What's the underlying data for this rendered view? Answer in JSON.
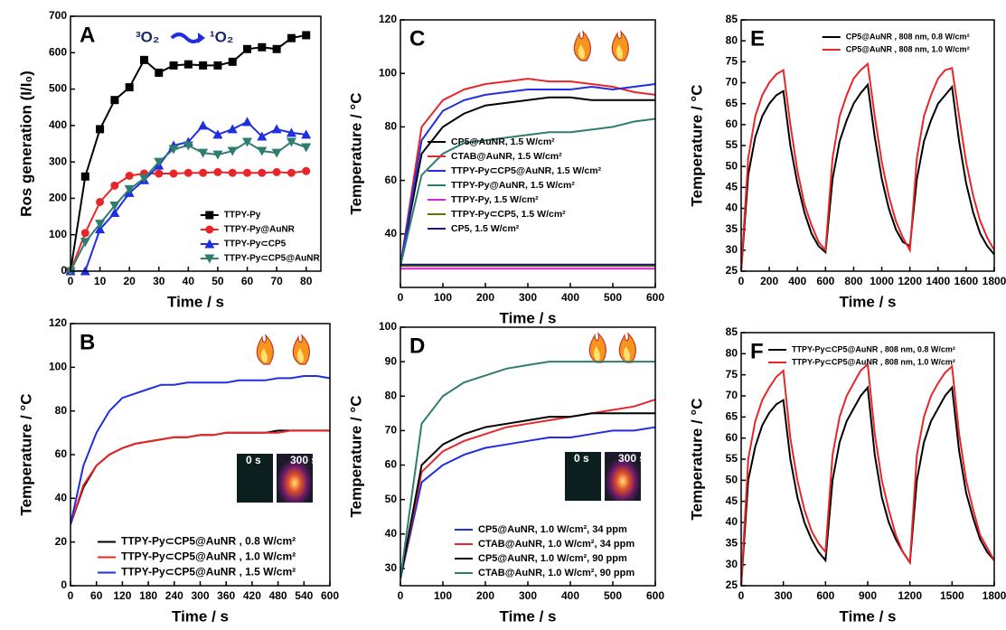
{
  "chart_data": [
    {
      "type": "line",
      "label": "A",
      "xlabel": "Time / s",
      "ylabel": "Ros generation (I/I₀)",
      "annotation": {
        "from": "³O₂",
        "to": "¹O₂"
      },
      "xlim": [
        0,
        85
      ],
      "ylim": [
        0,
        700
      ],
      "xticks": [
        0,
        10,
        20,
        30,
        40,
        50,
        60,
        70,
        80
      ],
      "yticks": [
        0,
        100,
        200,
        300,
        400,
        500,
        600,
        700
      ],
      "legend": "lower right",
      "x": [
        0,
        5,
        10,
        15,
        20,
        25,
        30,
        35,
        40,
        45,
        50,
        55,
        60,
        65,
        70,
        75,
        80
      ],
      "series": [
        {
          "name": "TTPY-Py",
          "color": "#000000",
          "marker": "square",
          "values": [
            0,
            260,
            390,
            470,
            505,
            580,
            545,
            565,
            568,
            565,
            565,
            575,
            610,
            615,
            610,
            640,
            648
          ]
        },
        {
          "name": "TTPY-Py@AuNR",
          "color": "#e8262a",
          "marker": "circle",
          "values": [
            0,
            105,
            190,
            235,
            262,
            268,
            268,
            268,
            270,
            270,
            272,
            270,
            270,
            270,
            272,
            270,
            275
          ]
        },
        {
          "name": "TTPY-Py⊂CP5",
          "color": "#1f2ee0",
          "marker": "triangle",
          "values": [
            0,
            0,
            115,
            160,
            215,
            250,
            290,
            345,
            355,
            400,
            375,
            390,
            410,
            370,
            390,
            380,
            375
          ]
        },
        {
          "name": "TTPY-Py⊂CP5@AuNR",
          "color": "#2e7d6e",
          "marker": "triangle-down",
          "values": [
            0,
            80,
            130,
            180,
            225,
            255,
            300,
            335,
            345,
            325,
            320,
            330,
            355,
            330,
            325,
            355,
            340
          ]
        }
      ]
    },
    {
      "type": "line",
      "label": "B",
      "xlabel": "Time / s",
      "ylabel": "Temperature / °C",
      "inset_labels": [
        "0 s",
        "300 s"
      ],
      "xlim": [
        0,
        600
      ],
      "ylim": [
        0,
        120
      ],
      "xticks": [
        0,
        60,
        120,
        180,
        240,
        300,
        360,
        420,
        480,
        540,
        600
      ],
      "yticks": [
        0,
        20,
        40,
        60,
        80,
        100,
        120
      ],
      "legend": "lower left",
      "x": [
        0,
        30,
        60,
        90,
        120,
        150,
        180,
        210,
        240,
        270,
        300,
        330,
        360,
        390,
        420,
        450,
        480,
        510,
        540,
        570,
        600
      ],
      "series": [
        {
          "name": "TTPY-Py⊂CP5@AuNR , 0.8 W/cm²",
          "color": "#000000",
          "values": [
            28,
            45,
            55,
            60,
            63,
            65,
            66,
            67,
            68,
            68,
            69,
            69,
            70,
            70,
            70,
            70,
            71,
            71,
            71,
            71,
            71
          ]
        },
        {
          "name": "TTPY-Py⊂CP5@AuNR , 1.0 W/cm²",
          "color": "#e8262a",
          "values": [
            28,
            46,
            55,
            60,
            63,
            65,
            66,
            67,
            68,
            68,
            69,
            69,
            70,
            70,
            70,
            70,
            70,
            71,
            71,
            71,
            71
          ]
        },
        {
          "name": "TTPY-Py⊂CP5@AuNR , 1.5 W/cm²",
          "color": "#1f2ee0",
          "values": [
            28,
            55,
            70,
            80,
            86,
            88,
            90,
            92,
            92,
            93,
            93,
            93,
            93,
            94,
            94,
            94,
            95,
            95,
            96,
            96,
            95
          ]
        }
      ]
    },
    {
      "type": "line",
      "label": "C",
      "xlabel": "Time / s",
      "ylabel": "Temperature / °C",
      "xlim": [
        0,
        600
      ],
      "ylim": [
        20,
        120
      ],
      "xticks": [
        0,
        100,
        200,
        300,
        400,
        500,
        600
      ],
      "yticks": [
        40,
        60,
        80,
        100,
        120
      ],
      "legend": "center left",
      "x": [
        0,
        50,
        100,
        150,
        200,
        250,
        300,
        350,
        400,
        450,
        500,
        550,
        600
      ],
      "series": [
        {
          "name": "CP5@AuNR, 1.5 W/cm²",
          "color": "#000000",
          "values": [
            28,
            70,
            80,
            85,
            88,
            89,
            90,
            91,
            91,
            90,
            90,
            90,
            90
          ]
        },
        {
          "name": "CTAB@AuNR,  1.5 W/cm²",
          "color": "#e8262a",
          "values": [
            28,
            80,
            90,
            94,
            96,
            97,
            98,
            97,
            97,
            96,
            95,
            93,
            92
          ]
        },
        {
          "name": "TTPY-Py⊂CP5@AuNR, 1.5 W/cm²",
          "color": "#1f2ee0",
          "values": [
            28,
            75,
            86,
            90,
            92,
            93,
            94,
            94,
            94,
            95,
            94,
            95,
            96
          ]
        },
        {
          "name": "TTPY-Py@AuNR,  1.5 W/cm²",
          "color": "#2e7d6e",
          "values": [
            28,
            62,
            70,
            74,
            75,
            76,
            77,
            78,
            78,
            79,
            80,
            82,
            83
          ]
        },
        {
          "name": "TTPY-Py, 1.5 W/cm²",
          "color": "#e020e0",
          "values": [
            27,
            27,
            27,
            27,
            27,
            27,
            27,
            27,
            27,
            27,
            27,
            27,
            27
          ]
        },
        {
          "name": "TTPY-Py⊂CP5, 1.5 W/cm²",
          "color": "#6b6b10",
          "values": [
            28,
            28,
            28,
            28,
            28,
            28,
            28,
            28,
            28,
            28,
            28,
            28,
            28
          ]
        },
        {
          "name": "CP5, 1.5 W/cm²",
          "color": "#1a1a70",
          "values": [
            28.5,
            28.5,
            28.5,
            28.5,
            28.5,
            28.5,
            28.5,
            28.5,
            28.5,
            28.5,
            28.5,
            28.5,
            28.5
          ]
        }
      ]
    },
    {
      "type": "line",
      "label": "D",
      "xlabel": "Time / s",
      "ylabel": "Temperature / °C",
      "inset_labels": [
        "0 s",
        "300 s"
      ],
      "xlim": [
        0,
        600
      ],
      "ylim": [
        25,
        100
      ],
      "xticks": [
        0,
        100,
        200,
        300,
        400,
        500,
        600
      ],
      "yticks": [
        30,
        40,
        50,
        60,
        70,
        80,
        90,
        100
      ],
      "legend": "lower left",
      "x": [
        0,
        50,
        100,
        150,
        200,
        250,
        300,
        350,
        400,
        450,
        500,
        550,
        600
      ],
      "series": [
        {
          "name": "CP5@AuNR, 1.0 W/cm², 34 ppm",
          "color": "#1f2ee0",
          "values": [
            27,
            55,
            60,
            63,
            65,
            66,
            67,
            68,
            68,
            69,
            70,
            70,
            71
          ]
        },
        {
          "name": "CTAB@AuNR, 1.0 W/cm², 34 ppm",
          "color": "#e8262a",
          "values": [
            27,
            58,
            64,
            67,
            69,
            71,
            72,
            73,
            74,
            75,
            76,
            77,
            79
          ]
        },
        {
          "name": "CP5@AuNR, 1.0 W/cm², 90 ppm",
          "color": "#000000",
          "values": [
            27,
            60,
            66,
            69,
            71,
            72,
            73,
            74,
            74,
            75,
            75,
            75,
            75
          ]
        },
        {
          "name": "CTAB@AuNR, 1.0 W/cm², 90 ppm",
          "color": "#2e7d6e",
          "values": [
            27,
            72,
            80,
            84,
            86,
            88,
            89,
            90,
            90,
            90,
            90,
            90,
            90
          ]
        }
      ]
    },
    {
      "type": "line",
      "label": "E",
      "xlabel": "Time / s",
      "ylabel": "Temperature / °C",
      "xlim": [
        0,
        1800
      ],
      "ylim": [
        25,
        85
      ],
      "xticks": [
        0,
        200,
        400,
        600,
        800,
        1000,
        1200,
        1400,
        1600,
        1800
      ],
      "yticks": [
        25,
        30,
        35,
        40,
        45,
        50,
        55,
        60,
        65,
        70,
        75,
        80,
        85
      ],
      "legend": "upper right",
      "x": [
        0,
        50,
        100,
        150,
        200,
        250,
        300,
        350,
        400,
        450,
        500,
        550,
        600,
        650,
        700,
        750,
        800,
        850,
        900,
        950,
        1000,
        1050,
        1100,
        1150,
        1200,
        1250,
        1300,
        1350,
        1400,
        1450,
        1500,
        1550,
        1600,
        1650,
        1700,
        1750,
        1800
      ],
      "series": [
        {
          "name": "CP5@AuNR , 808 nm, 0.8 W/cm²",
          "color": "#000000",
          "values": [
            25,
            48,
            57,
            62,
            65,
            67,
            68,
            55,
            46,
            39,
            34,
            31,
            29.5,
            47,
            56,
            61,
            65,
            67.5,
            69.5,
            57,
            47,
            40,
            35,
            32,
            31,
            47,
            56,
            61,
            65,
            67,
            69,
            56,
            46,
            39,
            34,
            31,
            29
          ]
        },
        {
          "name": "CP5@AuNR , 808 nm, 1.0 W/cm²",
          "color": "#e8262a",
          "values": [
            25,
            52,
            62,
            67,
            70,
            72,
            73,
            60,
            49,
            41,
            36,
            32,
            30,
            52,
            62,
            67,
            71,
            73,
            74.5,
            62,
            51,
            43,
            37,
            33,
            30,
            52,
            62,
            67,
            71,
            73,
            73.5,
            62,
            51,
            43,
            37,
            33,
            30
          ]
        }
      ]
    },
    {
      "type": "line",
      "label": "F",
      "xlabel": "Time / s",
      "ylabel": "Temperature / °C",
      "xlim": [
        0,
        1800
      ],
      "ylim": [
        25,
        85
      ],
      "xticks": [
        0,
        300,
        600,
        900,
        1200,
        1500,
        1800
      ],
      "yticks": [
        25,
        30,
        35,
        40,
        45,
        50,
        55,
        60,
        65,
        70,
        75,
        80,
        85
      ],
      "legend": "upper left",
      "x": [
        0,
        50,
        100,
        150,
        200,
        250,
        300,
        350,
        400,
        450,
        500,
        550,
        600,
        650,
        700,
        750,
        800,
        850,
        900,
        950,
        1000,
        1050,
        1100,
        1150,
        1200,
        1250,
        1300,
        1350,
        1400,
        1450,
        1500,
        1550,
        1600,
        1650,
        1700,
        1750,
        1800
      ],
      "series": [
        {
          "name": "TTPY-Py⊂CP5@AuNR , 808 nm, 0.8 W/cm²",
          "color": "#000000",
          "values": [
            25,
            50,
            58,
            63,
            66,
            68,
            69,
            55,
            46,
            40,
            36,
            33,
            31,
            50,
            59,
            64,
            67,
            70,
            72,
            56,
            46,
            40,
            36,
            33,
            30.5,
            50,
            59,
            64,
            67,
            70,
            72,
            57,
            47,
            41,
            36,
            33,
            31
          ]
        },
        {
          "name": "TTPY-Py⊂CP5@AuNR , 808 nm, 1.0 W/cm²",
          "color": "#e8262a",
          "values": [
            25,
            55,
            64,
            69,
            72,
            74.5,
            76,
            60,
            50,
            43,
            38,
            35,
            33,
            56,
            65,
            70,
            73,
            76,
            77.5,
            61,
            50,
            43,
            37,
            33,
            30.5,
            56,
            65,
            70,
            73,
            75.5,
            77,
            61,
            50,
            43,
            37,
            34,
            31
          ]
        }
      ]
    }
  ]
}
